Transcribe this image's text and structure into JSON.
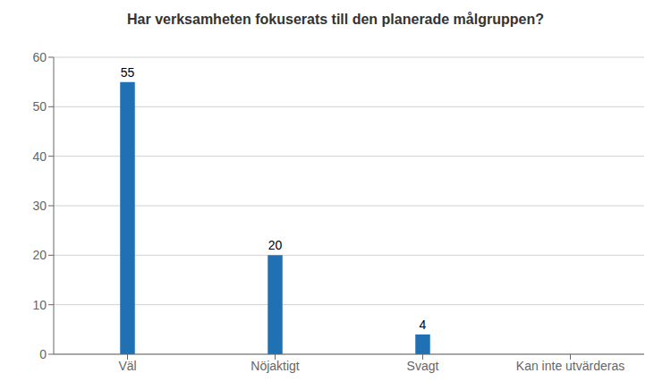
{
  "chart_data": {
    "type": "bar",
    "title": "Har verksamheten fokuserats till den planerade målgruppen?",
    "categories": [
      "Väl",
      "Nöjaktigt",
      "Svagt",
      "Kan inte utvärderas"
    ],
    "values": [
      55,
      20,
      4,
      0
    ],
    "value_labels": [
      "55",
      "20",
      "4",
      null
    ],
    "data_labels": true,
    "color": "#2070B4",
    "ylim": [
      0,
      60
    ],
    "yticks": [
      0,
      10,
      20,
      30,
      40,
      50,
      60
    ],
    "grid": true
  }
}
